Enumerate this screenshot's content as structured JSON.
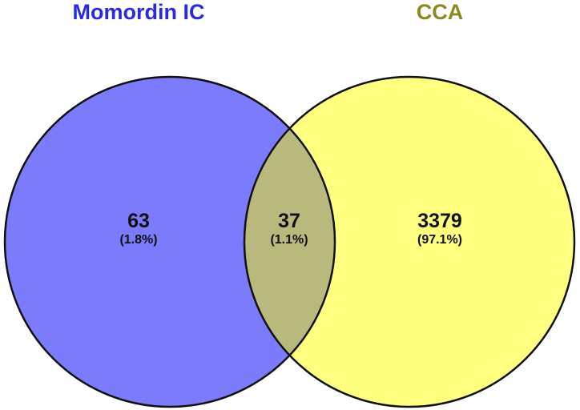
{
  "sets": {
    "a": {
      "name": "Momordin IC",
      "color": "#2a2ae0",
      "fill": "#7b7bfb"
    },
    "b": {
      "name": "CCA",
      "color": "#8a8a1e",
      "fill": "#ffff80"
    }
  },
  "intersection_fill": "#b9b97e",
  "regions": {
    "a_only": {
      "count": "63",
      "percent": "(1.8%)"
    },
    "both": {
      "count": "37",
      "percent": "(1.1%)"
    },
    "b_only": {
      "count": "3379",
      "percent": "(97.1%)"
    }
  },
  "outline_color": "#111111"
}
